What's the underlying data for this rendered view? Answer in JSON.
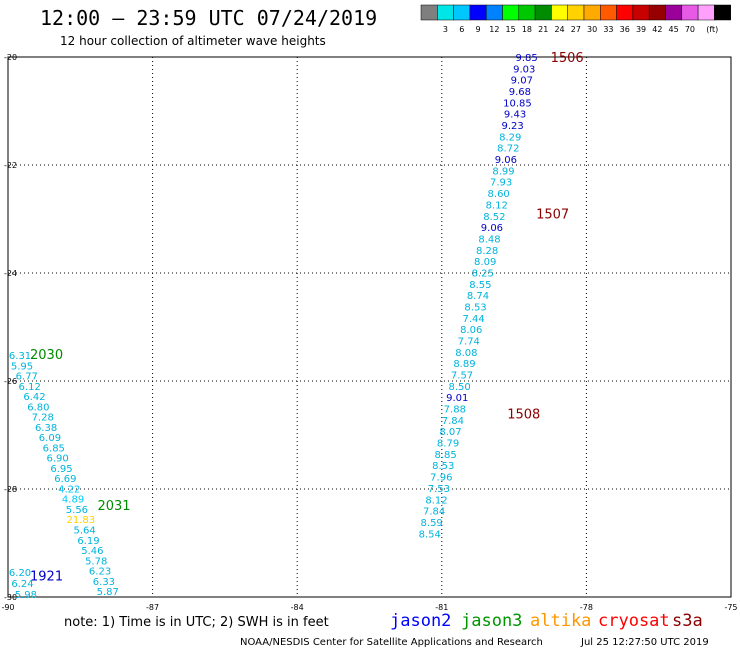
{
  "header": {
    "title": "12:00 – 23:59 UTC 07/24/2019",
    "subtitle": "12 hour collection of altimeter wave heights"
  },
  "legend": {
    "unit": "(ft)",
    "colors": [
      "#7f7f7f",
      "#00e6e6",
      "#00c8ff",
      "#0000ff",
      "#0082ff",
      "#00ff00",
      "#00c800",
      "#008c00",
      "#ffff00",
      "#ffd200",
      "#ffaa00",
      "#ff5a00",
      "#ff0000",
      "#c80000",
      "#960000",
      "#9b009b",
      "#e65ae6",
      "#ffa0ff",
      "#000000"
    ],
    "labels": [
      "3",
      "6",
      "9",
      "12",
      "15",
      "18",
      "21",
      "24",
      "27",
      "30",
      "33",
      "36",
      "39",
      "42",
      "45",
      "70"
    ]
  },
  "chart_data": {
    "type": "scatter",
    "xlim": [
      -90,
      -75
    ],
    "ylim": [
      -30,
      -20
    ],
    "x_ticks": [
      "-90",
      "-87",
      "-84",
      "-81",
      "-78",
      "-75"
    ],
    "y_ticks": [
      "-20",
      "-22",
      "-24",
      "-26",
      "-28",
      "-30"
    ],
    "grid": true,
    "pass_labels": [
      {
        "text": "1506",
        "x": -78.4,
        "y": -20.0,
        "color": "#8b0000"
      },
      {
        "text": "1507",
        "x": -78.7,
        "y": -22.9,
        "color": "#8b0000"
      },
      {
        "text": "1508",
        "x": -79.3,
        "y": -26.6,
        "color": "#8b0000"
      },
      {
        "text": "2030",
        "x": -89.2,
        "y": -25.5,
        "color": "#008c00"
      },
      {
        "text": "2031",
        "x": -87.8,
        "y": -28.3,
        "color": "#008c00"
      },
      {
        "text": "1921",
        "x": -89.2,
        "y": -29.6,
        "color": "#0000c8"
      }
    ],
    "series": [
      {
        "points": [
          {
            "x": -79.24,
            "y": -20.0,
            "v": "9.85",
            "c": "#0000c8"
          },
          {
            "x": -79.29,
            "y": -20.21,
            "v": "9.03",
            "c": "#0000c8"
          },
          {
            "x": -79.34,
            "y": -20.42,
            "v": "9.07",
            "c": "#0000c8"
          },
          {
            "x": -79.38,
            "y": -20.63,
            "v": "9.68",
            "c": "#0000c8"
          },
          {
            "x": -79.43,
            "y": -20.84,
            "v": "10.85",
            "c": "#0000c8"
          },
          {
            "x": -79.48,
            "y": -21.05,
            "v": "9.43",
            "c": "#0000c8"
          },
          {
            "x": -79.53,
            "y": -21.26,
            "v": "9.23",
            "c": "#0000c8"
          },
          {
            "x": -79.58,
            "y": -21.47,
            "v": "8.29",
            "c": "#00b4dc"
          },
          {
            "x": -79.62,
            "y": -21.68,
            "v": "8.72",
            "c": "#00b4dc"
          },
          {
            "x": -79.67,
            "y": -21.89,
            "v": "9.06",
            "c": "#0000c8"
          },
          {
            "x": -79.72,
            "y": -22.1,
            "v": "8.99",
            "c": "#00b4dc"
          },
          {
            "x": -79.77,
            "y": -22.31,
            "v": "7.93",
            "c": "#00b4dc"
          },
          {
            "x": -79.82,
            "y": -22.52,
            "v": "8.60",
            "c": "#00b4dc"
          },
          {
            "x": -79.86,
            "y": -22.73,
            "v": "8.12",
            "c": "#00b4dc"
          },
          {
            "x": -79.91,
            "y": -22.94,
            "v": "8.52",
            "c": "#00b4dc"
          },
          {
            "x": -79.96,
            "y": -23.15,
            "v": "9.06",
            "c": "#0000c8"
          },
          {
            "x": -80.01,
            "y": -23.36,
            "v": "8.48",
            "c": "#00b4dc"
          },
          {
            "x": -80.06,
            "y": -23.57,
            "v": "8.28",
            "c": "#00b4dc"
          },
          {
            "x": -80.1,
            "y": -23.78,
            "v": "8.09",
            "c": "#00b4dc"
          },
          {
            "x": -80.15,
            "y": -23.99,
            "v": "8.25",
            "c": "#00b4dc"
          },
          {
            "x": -80.2,
            "y": -24.2,
            "v": "8.55",
            "c": "#00b4dc"
          },
          {
            "x": -80.25,
            "y": -24.41,
            "v": "8.74",
            "c": "#00b4dc"
          },
          {
            "x": -80.3,
            "y": -24.62,
            "v": "8.53",
            "c": "#00b4dc"
          },
          {
            "x": -80.34,
            "y": -24.83,
            "v": "7.44",
            "c": "#00b4dc"
          },
          {
            "x": -80.39,
            "y": -25.04,
            "v": "8.06",
            "c": "#00b4dc"
          },
          {
            "x": -80.44,
            "y": -25.25,
            "v": "7.74",
            "c": "#00b4dc"
          },
          {
            "x": -80.49,
            "y": -25.46,
            "v": "8.08",
            "c": "#00b4dc"
          },
          {
            "x": -80.53,
            "y": -25.67,
            "v": "8.89",
            "c": "#00b4dc"
          },
          {
            "x": -80.58,
            "y": -25.88,
            "v": "7.57",
            "c": "#00b4dc"
          },
          {
            "x": -80.63,
            "y": -26.09,
            "v": "8.50",
            "c": "#00b4dc"
          },
          {
            "x": -80.68,
            "y": -26.3,
            "v": "9.01",
            "c": "#0000c8"
          },
          {
            "x": -80.73,
            "y": -26.51,
            "v": "7.88",
            "c": "#00b4dc"
          },
          {
            "x": -80.77,
            "y": -26.72,
            "v": "7.84",
            "c": "#00b4dc"
          },
          {
            "x": -80.82,
            "y": -26.93,
            "v": "8.07",
            "c": "#00b4dc"
          },
          {
            "x": -80.87,
            "y": -27.14,
            "v": "8.79",
            "c": "#00b4dc"
          },
          {
            "x": -80.92,
            "y": -27.35,
            "v": "8.85",
            "c": "#00b4dc"
          },
          {
            "x": -80.97,
            "y": -27.56,
            "v": "8.53",
            "c": "#00b4dc"
          },
          {
            "x": -81.01,
            "y": -27.77,
            "v": "7.96",
            "c": "#00b4dc"
          },
          {
            "x": -81.06,
            "y": -27.98,
            "v": "7.53",
            "c": "#00b4dc"
          },
          {
            "x": -81.11,
            "y": -28.19,
            "v": "8.12",
            "c": "#00b4dc"
          },
          {
            "x": -81.16,
            "y": -28.4,
            "v": "7.84",
            "c": "#00b4dc"
          },
          {
            "x": -81.21,
            "y": -28.61,
            "v": "8.59",
            "c": "#00b4dc"
          },
          {
            "x": -81.25,
            "y": -28.82,
            "v": "8.54",
            "c": "#00b4dc"
          }
        ]
      },
      {
        "points": [
          {
            "x": -89.75,
            "y": -25.52,
            "v": "6.31",
            "c": "#00b4dc"
          },
          {
            "x": -89.71,
            "y": -25.71,
            "v": "5.95",
            "c": "#00b4dc"
          },
          {
            "x": -89.61,
            "y": -25.9,
            "v": "6.77",
            "c": "#00b4dc"
          },
          {
            "x": -89.55,
            "y": -26.09,
            "v": "6.12",
            "c": "#00b4dc"
          },
          {
            "x": -89.45,
            "y": -26.28,
            "v": "6.42",
            "c": "#00b4dc"
          },
          {
            "x": -89.37,
            "y": -26.47,
            "v": "6.80",
            "c": "#00b4dc"
          },
          {
            "x": -89.28,
            "y": -26.66,
            "v": "7.28",
            "c": "#00b4dc"
          },
          {
            "x": -89.21,
            "y": -26.85,
            "v": "6.38",
            "c": "#00b4dc"
          },
          {
            "x": -89.13,
            "y": -27.04,
            "v": "6.09",
            "c": "#00b4dc"
          },
          {
            "x": -89.05,
            "y": -27.23,
            "v": "6.85",
            "c": "#00b4dc"
          },
          {
            "x": -88.97,
            "y": -27.42,
            "v": "6.90",
            "c": "#00b4dc"
          },
          {
            "x": -88.89,
            "y": -27.61,
            "v": "6.95",
            "c": "#00b4dc"
          },
          {
            "x": -88.81,
            "y": -27.8,
            "v": "6.69",
            "c": "#00b4dc"
          },
          {
            "x": -88.73,
            "y": -27.99,
            "v": "4.22",
            "c": "#00c8ff"
          },
          {
            "x": -88.65,
            "y": -28.18,
            "v": "4.89",
            "c": "#00c8ff"
          },
          {
            "x": -88.57,
            "y": -28.37,
            "v": "5.56",
            "c": "#00b4dc"
          },
          {
            "x": -88.49,
            "y": -28.56,
            "v": "21.83",
            "c": "#ffd200"
          },
          {
            "x": -88.41,
            "y": -28.75,
            "v": "5.64",
            "c": "#00b4dc"
          },
          {
            "x": -88.33,
            "y": -28.94,
            "v": "6.19",
            "c": "#00b4dc"
          },
          {
            "x": -88.25,
            "y": -29.13,
            "v": "5.46",
            "c": "#00b4dc"
          },
          {
            "x": -88.17,
            "y": -29.32,
            "v": "5.78",
            "c": "#00b4dc"
          },
          {
            "x": -88.09,
            "y": -29.51,
            "v": "6.23",
            "c": "#00b4dc"
          },
          {
            "x": -88.01,
            "y": -29.7,
            "v": "6.33",
            "c": "#00b4dc"
          },
          {
            "x": -87.93,
            "y": -29.89,
            "v": "5.87",
            "c": "#00b4dc"
          }
        ]
      },
      {
        "points": [
          {
            "x": -89.75,
            "y": -29.54,
            "v": "6.20",
            "c": "#00b4dc"
          },
          {
            "x": -89.7,
            "y": -29.74,
            "v": "6.24",
            "c": "#00b4dc"
          },
          {
            "x": -89.63,
            "y": -29.94,
            "v": "5.98",
            "c": "#00b4dc"
          }
        ]
      }
    ]
  },
  "satellites": [
    {
      "name": "jason2",
      "color": "#0000ff"
    },
    {
      "name": "jason3",
      "color": "#009600"
    },
    {
      "name": "altika",
      "color": "#ff9600"
    },
    {
      "name": "cryosat",
      "color": "#ff0000"
    },
    {
      "name": "s3a",
      "color": "#8b0000"
    }
  ],
  "note": "note: 1) Time is in UTC; 2) SWH is in feet",
  "footer": {
    "credit": "NOAA/NESDIS Center for Satellite Applications and Research",
    "timestamp": "Jul 25 12:27:50 UTC 2019"
  }
}
